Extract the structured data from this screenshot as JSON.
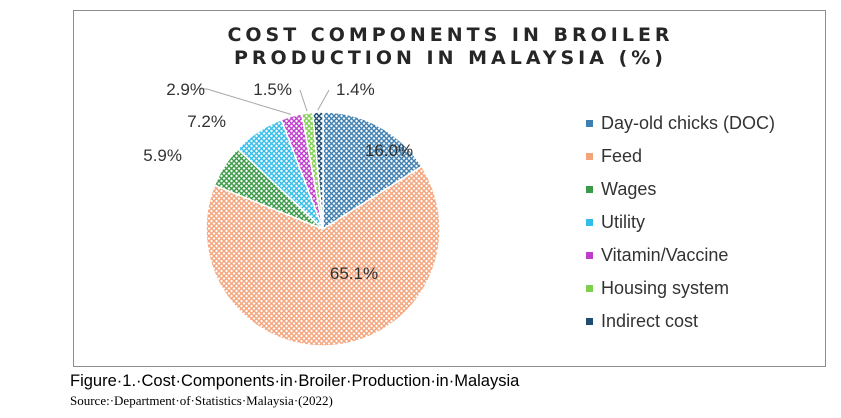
{
  "chart_data": {
    "type": "pie",
    "title_lines": [
      "COST COMPONENTS IN BROILER",
      "PRODUCTION IN MALAYSIA (%)"
    ],
    "legend_position": "right",
    "slices": [
      {
        "name": "Day-old chicks (DOC)",
        "value": 16.0,
        "label": "16.0%",
        "color": "#3e7fb0"
      },
      {
        "name": "Feed",
        "value": 65.1,
        "label": "65.1%",
        "color": "#f4a47a"
      },
      {
        "name": "Wages",
        "value": 5.9,
        "label": "5.9%",
        "color": "#3a9a46"
      },
      {
        "name": "Utility",
        "value": 7.2,
        "label": "7.2%",
        "color": "#33bde8"
      },
      {
        "name": "Vitamin/Vaccine",
        "value": 2.9,
        "label": "2.9%",
        "color": "#c03dcc"
      },
      {
        "name": "Housing system",
        "value": 1.5,
        "label": "1.5%",
        "color": "#7fcf4f"
      },
      {
        "name": "Indirect cost",
        "value": 1.4,
        "label": "1.4%",
        "color": "#1d4d72"
      }
    ]
  },
  "caption": "Figure·1.·Cost·Components·in·Broiler·Production·in·Malaysia",
  "source": "Source:·Department·of·Statistics·Malaysia·(2022)"
}
